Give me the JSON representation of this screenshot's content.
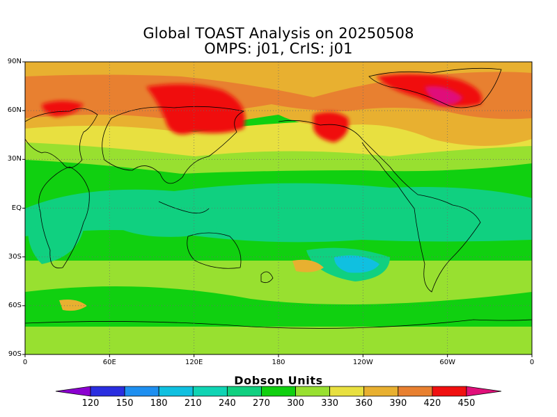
{
  "title": {
    "line1": "Global TOAST Analysis on 20250508",
    "line2": "OMPS: j01, CrIS: j01"
  },
  "map": {
    "projection": "equirectangular",
    "lat_labels": [
      "90N",
      "60N",
      "30N",
      "EQ",
      "30S",
      "60S",
      "90S"
    ],
    "lat_values": [
      90,
      60,
      30,
      0,
      -30,
      -60,
      -90
    ],
    "lon_labels": [
      "0",
      "60E",
      "120E",
      "180",
      "120W",
      "60W",
      "0"
    ],
    "lon_values": [
      0,
      60,
      120,
      180,
      240,
      300,
      360
    ],
    "grid": "dotted",
    "grid_color": "#6b6b6b",
    "coastline_color": "#000000"
  },
  "colorbar": {
    "title": "Dobson Units",
    "ticks": [
      "120",
      "150",
      "180",
      "210",
      "240",
      "270",
      "300",
      "330",
      "360",
      "390",
      "420",
      "450"
    ],
    "colors": [
      "#8b00d0",
      "#2a2ee0",
      "#1e8ff0",
      "#10c0e0",
      "#10d4b4",
      "#10d080",
      "#10d010",
      "#98e030",
      "#e8e040",
      "#e8b030",
      "#e88030",
      "#f01010",
      "#e0107a"
    ]
  }
}
